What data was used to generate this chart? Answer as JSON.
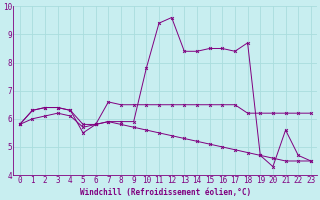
{
  "xlabel": "Windchill (Refroidissement éolien,°C)",
  "bg_color": "#c8eef0",
  "line_color": "#800080",
  "grid_color": "#aadddd",
  "spine_color": "#800080",
  "xlim": [
    -0.5,
    23.5
  ],
  "ylim": [
    4,
    10
  ],
  "yticks": [
    4,
    5,
    6,
    7,
    8,
    9,
    10
  ],
  "xticks": [
    0,
    1,
    2,
    3,
    4,
    5,
    6,
    7,
    8,
    9,
    10,
    11,
    12,
    13,
    14,
    15,
    16,
    17,
    18,
    19,
    20,
    21,
    22,
    23
  ],
  "series": [
    [
      5.8,
      6.3,
      6.4,
      6.4,
      6.3,
      5.8,
      5.8,
      6.6,
      6.5,
      6.5,
      6.5,
      6.5,
      6.5,
      6.5,
      6.5,
      6.5,
      6.5,
      6.5,
      6.2,
      6.2,
      6.2,
      6.2,
      6.2,
      6.2
    ],
    [
      5.8,
      6.3,
      6.4,
      6.4,
      6.3,
      5.5,
      5.8,
      5.9,
      5.9,
      5.9,
      7.8,
      9.4,
      9.6,
      8.4,
      8.4,
      8.5,
      8.5,
      8.4,
      8.7,
      4.7,
      4.3,
      5.6,
      4.7,
      4.5
    ],
    [
      5.8,
      6.0,
      6.1,
      6.2,
      6.1,
      5.7,
      5.8,
      5.9,
      5.8,
      5.7,
      5.6,
      5.5,
      5.4,
      5.3,
      5.2,
      5.1,
      5.0,
      4.9,
      4.8,
      4.7,
      4.6,
      4.5,
      4.5,
      4.5
    ]
  ],
  "tick_fontsize": 5.5,
  "xlabel_fontsize": 5.5,
  "linewidth": 0.7,
  "markersize": 2.0,
  "markeredgewidth": 0.7
}
